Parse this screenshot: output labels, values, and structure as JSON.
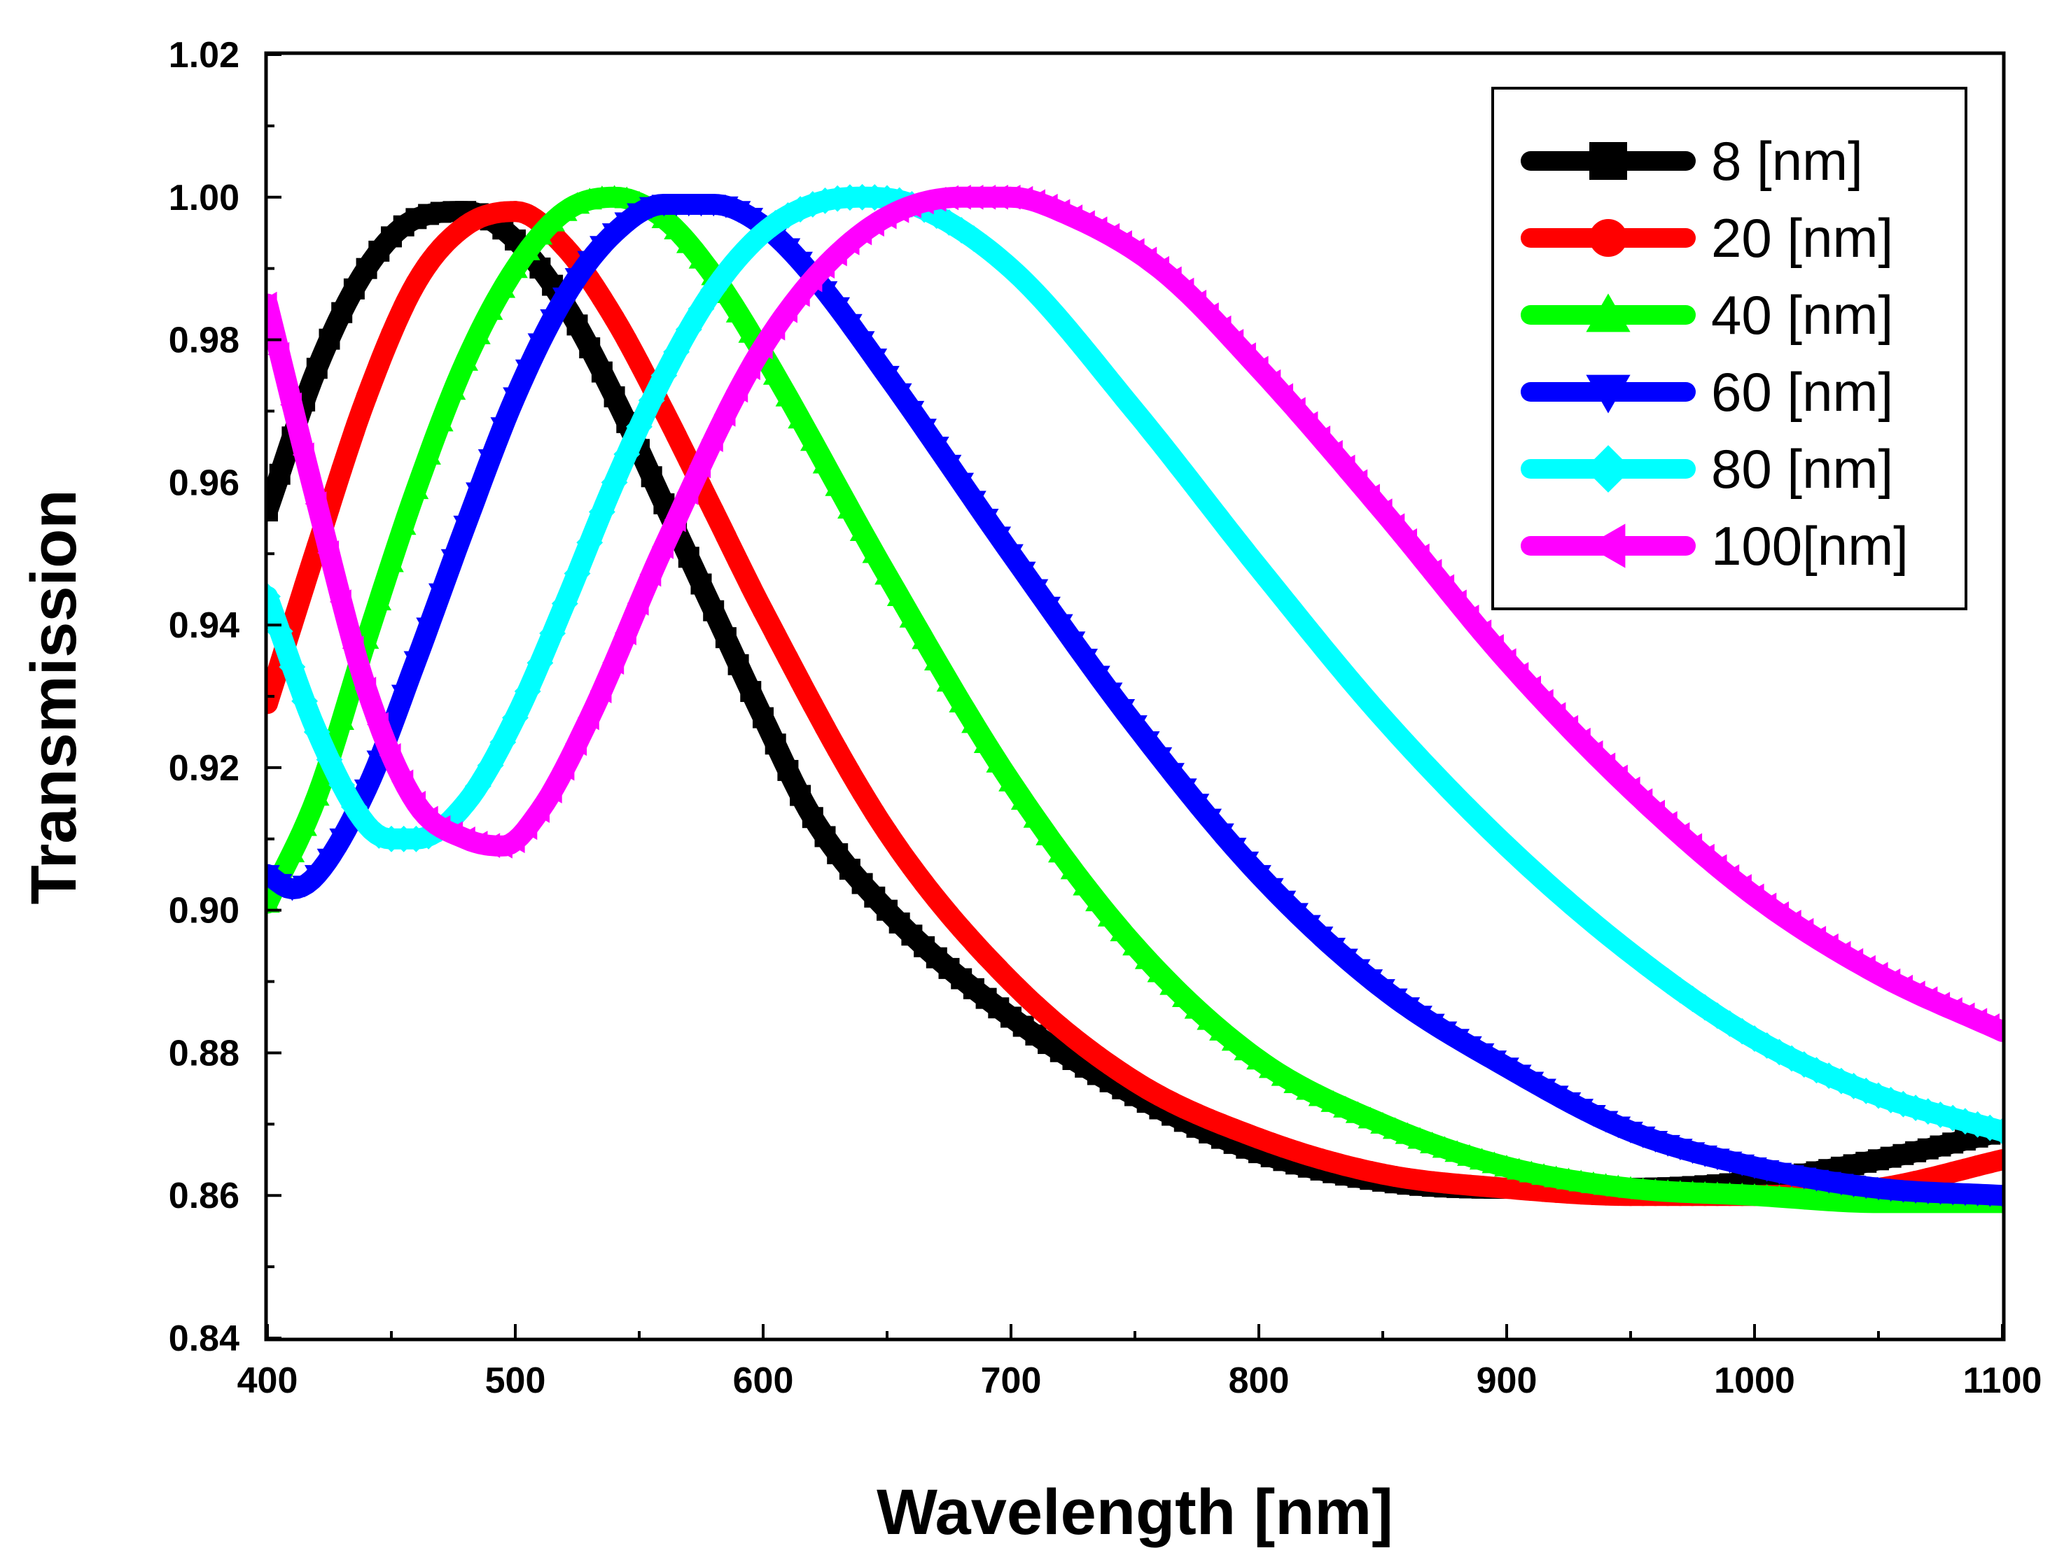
{
  "chart_data": {
    "type": "line",
    "title": "",
    "xlabel": "Wavelength [nm]",
    "ylabel": "Transmission",
    "xlim": [
      400,
      1100
    ],
    "ylim": [
      0.84,
      1.02
    ],
    "x_ticks": [
      400,
      500,
      600,
      700,
      800,
      900,
      1000,
      1100
    ],
    "x_tick_labels": [
      "400",
      "500",
      "600",
      "700",
      "800",
      "900",
      "1000",
      "1100"
    ],
    "y_ticks": [
      0.84,
      0.86,
      0.88,
      0.9,
      0.92,
      0.94,
      0.96,
      0.98,
      1.0,
      1.02
    ],
    "y_tick_labels": [
      "0.84",
      "0.86",
      "0.88",
      "0.90",
      "0.92",
      "0.94",
      "0.96",
      "0.98",
      "1.00",
      "1.02"
    ],
    "grid": false,
    "legend_position": "top-right",
    "series": [
      {
        "name": "8",
        "label": "8  [nm]",
        "color": "#000000",
        "marker": "square",
        "x": [
          400,
          420,
          440,
          460,
          480,
          500,
          520,
          540,
          560,
          580,
          600,
          620,
          650,
          700,
          750,
          800,
          850,
          900,
          950,
          1000,
          1050,
          1100
        ],
        "values": [
          0.956,
          0.976,
          0.99,
          0.997,
          0.998,
          0.994,
          0.985,
          0.972,
          0.957,
          0.942,
          0.927,
          0.913,
          0.9,
          0.885,
          0.874,
          0.866,
          0.862,
          0.861,
          0.861,
          0.862,
          0.865,
          0.869
        ]
      },
      {
        "name": "20",
        "label": "20  [nm]",
        "color": "#ff0000",
        "marker": "circle",
        "x": [
          400,
          420,
          440,
          460,
          480,
          500,
          520,
          540,
          560,
          580,
          600,
          650,
          700,
          750,
          800,
          850,
          900,
          950,
          1000,
          1050,
          1100
        ],
        "values": [
          0.929,
          0.951,
          0.972,
          0.988,
          0.996,
          0.998,
          0.993,
          0.983,
          0.97,
          0.956,
          0.942,
          0.911,
          0.89,
          0.876,
          0.868,
          0.863,
          0.861,
          0.86,
          0.86,
          0.861,
          0.865
        ]
      },
      {
        "name": "40",
        "label": "40  [nm]",
        "color": "#00ff00",
        "marker": "triangle-up",
        "x": [
          400,
          420,
          440,
          460,
          480,
          500,
          520,
          540,
          560,
          580,
          600,
          650,
          700,
          750,
          800,
          850,
          900,
          950,
          1000,
          1050,
          1100
        ],
        "values": [
          0.901,
          0.916,
          0.938,
          0.959,
          0.977,
          0.99,
          0.998,
          1.0,
          0.997,
          0.989,
          0.978,
          0.947,
          0.918,
          0.895,
          0.879,
          0.87,
          0.864,
          0.861,
          0.86,
          0.859,
          0.859
        ]
      },
      {
        "name": "60",
        "label": "60  [nm]",
        "color": "#0000ff",
        "marker": "triangle-down",
        "x": [
          400,
          410,
          420,
          440,
          460,
          480,
          500,
          520,
          540,
          560,
          580,
          600,
          620,
          650,
          700,
          750,
          800,
          850,
          900,
          950,
          1000,
          1050,
          1100
        ],
        "values": [
          0.905,
          0.903,
          0.905,
          0.917,
          0.935,
          0.954,
          0.972,
          0.986,
          0.995,
          0.999,
          0.999,
          0.996,
          0.989,
          0.975,
          0.95,
          0.926,
          0.905,
          0.889,
          0.878,
          0.869,
          0.864,
          0.861,
          0.86
        ]
      },
      {
        "name": "80",
        "label": "80  [nm]",
        "color": "#00ffff",
        "marker": "diamond",
        "x": [
          400,
          420,
          440,
          450,
          460,
          480,
          500,
          520,
          540,
          560,
          580,
          600,
          620,
          640,
          660,
          700,
          750,
          800,
          850,
          900,
          950,
          1000,
          1050,
          1100
        ],
        "values": [
          0.944,
          0.925,
          0.912,
          0.91,
          0.91,
          0.915,
          0.927,
          0.943,
          0.96,
          0.975,
          0.987,
          0.995,
          0.999,
          1.0,
          0.999,
          0.99,
          0.97,
          0.948,
          0.927,
          0.909,
          0.894,
          0.882,
          0.874,
          0.869
        ]
      },
      {
        "name": "100",
        "label": "100[nm]",
        "color": "#ff00ff",
        "marker": "triangle-left",
        "x": [
          400,
          420,
          440,
          460,
          480,
          495,
          510,
          530,
          560,
          600,
          640,
          680,
          700,
          720,
          760,
          800,
          850,
          900,
          950,
          1000,
          1050,
          1100
        ],
        "values": [
          0.985,
          0.957,
          0.931,
          0.915,
          0.91,
          0.909,
          0.914,
          0.927,
          0.951,
          0.979,
          0.995,
          1.0,
          1.0,
          0.998,
          0.99,
          0.976,
          0.956,
          0.935,
          0.917,
          0.902,
          0.891,
          0.883
        ]
      }
    ]
  }
}
